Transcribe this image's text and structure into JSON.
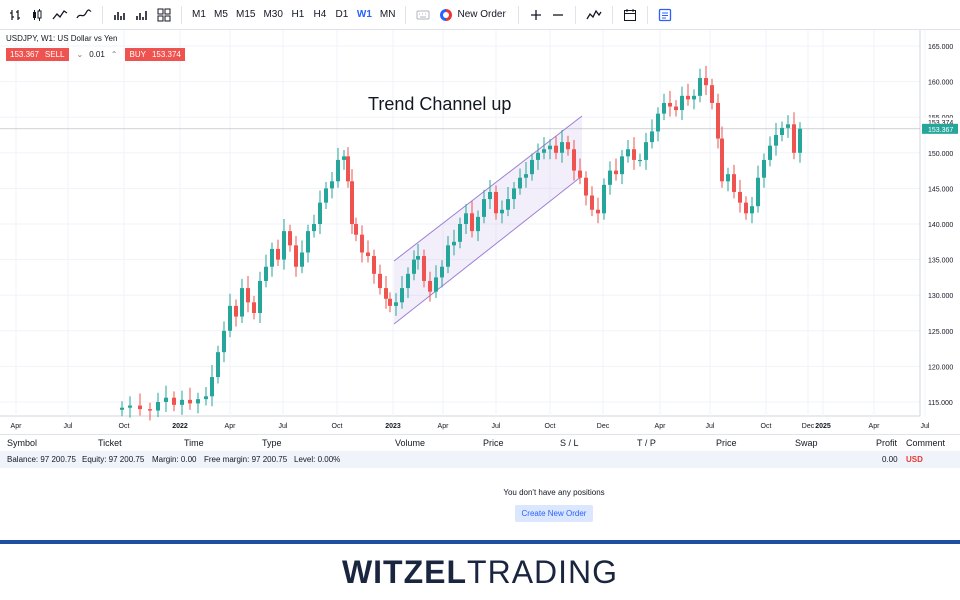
{
  "toolbar": {
    "timeframes": [
      "M1",
      "M5",
      "M15",
      "M30",
      "H1",
      "H4",
      "D1",
      "W1",
      "MN"
    ],
    "active_timeframe": "W1",
    "new_order_label": "New Order",
    "icons": [
      "bar-chart-icon",
      "candles-icon",
      "line-chart-icon",
      "area-chart-icon",
      "indicators-icon",
      "zoom-in-icon",
      "zoom-out-icon",
      "calendar-icon",
      "notes-icon"
    ]
  },
  "chart": {
    "symbol_title": "USDJPY, W1: US Dollar vs Yen",
    "sell_price": "153.367",
    "sell_label": "SELL",
    "quantity": "0.01",
    "buy_label": "BUY",
    "buy_price": "153.374",
    "annotation": "Trend Channel up",
    "price_labels": [
      "165.000",
      "160.000",
      "155.000",
      "150.000",
      "145.000",
      "140.000",
      "135.000",
      "130.000",
      "125.000",
      "120.000",
      "115.000"
    ],
    "current_ask": "153.374",
    "current_bid": "153.367",
    "time_labels": [
      "Apr",
      "Jul",
      "Oct",
      "2022",
      "Apr",
      "Jul",
      "Oct",
      "2023",
      "Apr",
      "Jul",
      "Oct",
      "Dec",
      "Apr",
      "Jul",
      "Oct",
      "Dec",
      "2025",
      "Apr",
      "Jul"
    ],
    "colors": {
      "up": "#26a69a",
      "down": "#ef5350",
      "channel": "#9c7fd6",
      "grid": "#f0f3fa"
    }
  },
  "positions": {
    "columns": [
      "Symbol",
      "Ticket",
      "Time",
      "Type",
      "Volume",
      "Price",
      "S / L",
      "T / P",
      "Price",
      "Swap",
      "Profit",
      "Comment"
    ],
    "balance": "Balance: 97 200.75",
    "equity": "Equity: 97 200.75",
    "margin": "Margin: 0.00",
    "free_margin": "Free margin: 97 200.75",
    "level": "Level: 0.00%",
    "profit_total": "0.00",
    "currency": "USD",
    "empty_message": "You don't have any positions",
    "create_button": "Create New Order"
  },
  "footer": {
    "logo_bold": "WITZEL",
    "logo_light": "TRADING"
  }
}
